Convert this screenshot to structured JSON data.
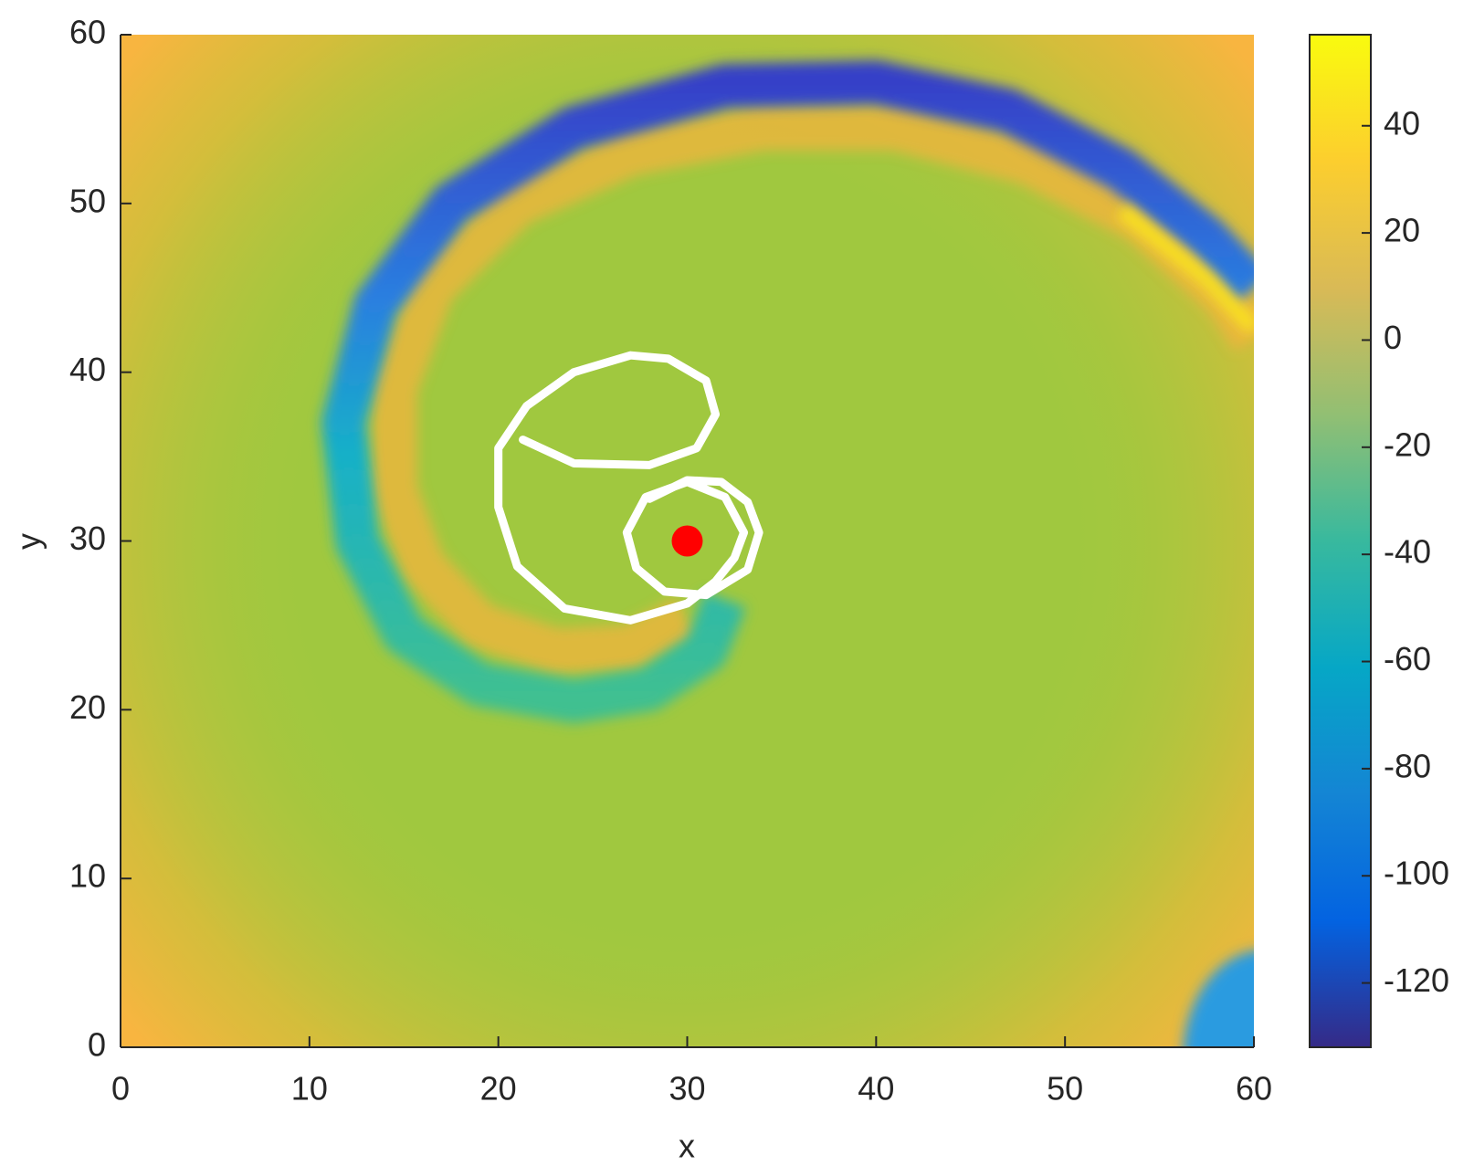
{
  "chart_data": {
    "type": "heatmap",
    "xlabel": "x",
    "ylabel": "y",
    "xlim": [
      0,
      60
    ],
    "ylim": [
      0,
      60
    ],
    "xticks": [
      0,
      10,
      20,
      30,
      40,
      50,
      60
    ],
    "yticks": [
      0,
      10,
      20,
      30,
      40,
      50,
      60
    ],
    "colorbar": {
      "clim": [
        -132,
        57
      ],
      "ticks": [
        -120,
        -100,
        -80,
        -60,
        -40,
        -20,
        0,
        20,
        40
      ],
      "colormap_colors": [
        "#352a87",
        "#0363e1",
        "#1485d4",
        "#06a7c6",
        "#38b99e",
        "#92bf73",
        "#d9ba56",
        "#fcce2e",
        "#f9fb0e"
      ]
    },
    "trajectory": {
      "color": "#ffffff",
      "x": [
        21.3,
        24,
        28,
        30.5,
        31.5,
        31,
        29,
        27,
        24,
        21.5,
        20,
        20,
        21,
        23.5,
        27,
        30,
        31.5,
        32.5,
        33,
        32,
        30,
        27.8,
        26.8,
        27.3,
        28.8,
        31,
        33.2,
        33.8,
        33.2,
        31.8,
        30,
        28
      ],
      "y": [
        36,
        34.6,
        34.5,
        35.5,
        37.5,
        39.5,
        40.8,
        41,
        40,
        38,
        35.5,
        32,
        28.5,
        26,
        25.3,
        26.3,
        27.6,
        29,
        30.5,
        32.6,
        33.5,
        32.6,
        30.5,
        28.4,
        27,
        26.8,
        28.3,
        30.5,
        32.3,
        33.5,
        33.6,
        32.5
      ]
    },
    "marker": {
      "x": 30,
      "y": 30,
      "color": "#ff0000"
    }
  }
}
